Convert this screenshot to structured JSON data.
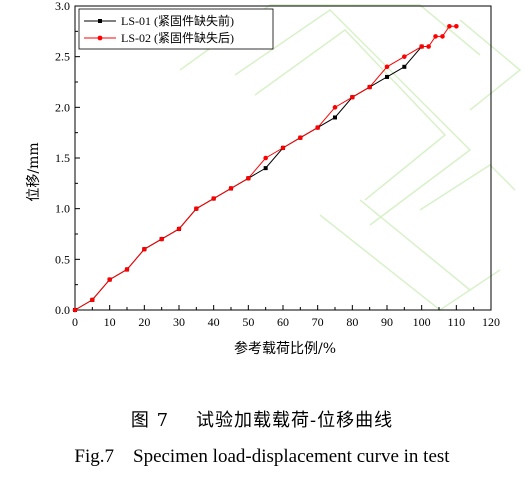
{
  "chart_data": {
    "type": "line",
    "xlabel": "参考载荷比例/%",
    "ylabel": "位移/mm",
    "xlim": [
      0,
      120
    ],
    "ylim": [
      0,
      3.0
    ],
    "xticks": [
      "0",
      "10",
      "20",
      "30",
      "40",
      "50",
      "60",
      "70",
      "80",
      "90",
      "100",
      "110",
      "120"
    ],
    "yticks": [
      "0.0",
      "0.5",
      "1.0",
      "1.5",
      "2.0",
      "2.5",
      "3.0"
    ],
    "legend_position": "top-left",
    "grid": false,
    "series": [
      {
        "name": "LS-01 (紧固件缺失前)",
        "color": "#000000",
        "marker": "square",
        "x": [
          0,
          5,
          10,
          15,
          20,
          25,
          30,
          35,
          40,
          45,
          50,
          55,
          60,
          65,
          70,
          75,
          80,
          85,
          90,
          95,
          100
        ],
        "y": [
          0,
          0.1,
          0.3,
          0.4,
          0.6,
          0.7,
          0.8,
          1.0,
          1.1,
          1.2,
          1.3,
          1.4,
          1.6,
          1.7,
          1.8,
          1.9,
          2.1,
          2.2,
          2.3,
          2.4,
          2.6
        ]
      },
      {
        "name": "LS-02 (紧固件缺失后)",
        "color": "#ff0000",
        "marker": "circle",
        "x": [
          0,
          5,
          10,
          15,
          20,
          25,
          30,
          35,
          40,
          45,
          50,
          55,
          60,
          65,
          70,
          75,
          80,
          85,
          90,
          95,
          100,
          102,
          104,
          106,
          108,
          110
        ],
        "y": [
          0,
          0.1,
          0.3,
          0.4,
          0.6,
          0.7,
          0.8,
          1.0,
          1.1,
          1.2,
          1.3,
          1.5,
          1.6,
          1.7,
          1.8,
          2.0,
          2.1,
          2.2,
          2.4,
          2.5,
          2.6,
          2.6,
          2.7,
          2.7,
          2.8,
          2.8
        ]
      }
    ]
  },
  "caption": {
    "cn": "图 7    试验加载载荷-位移曲线",
    "en": "Fig.7    Specimen load-displacement curve in test"
  }
}
